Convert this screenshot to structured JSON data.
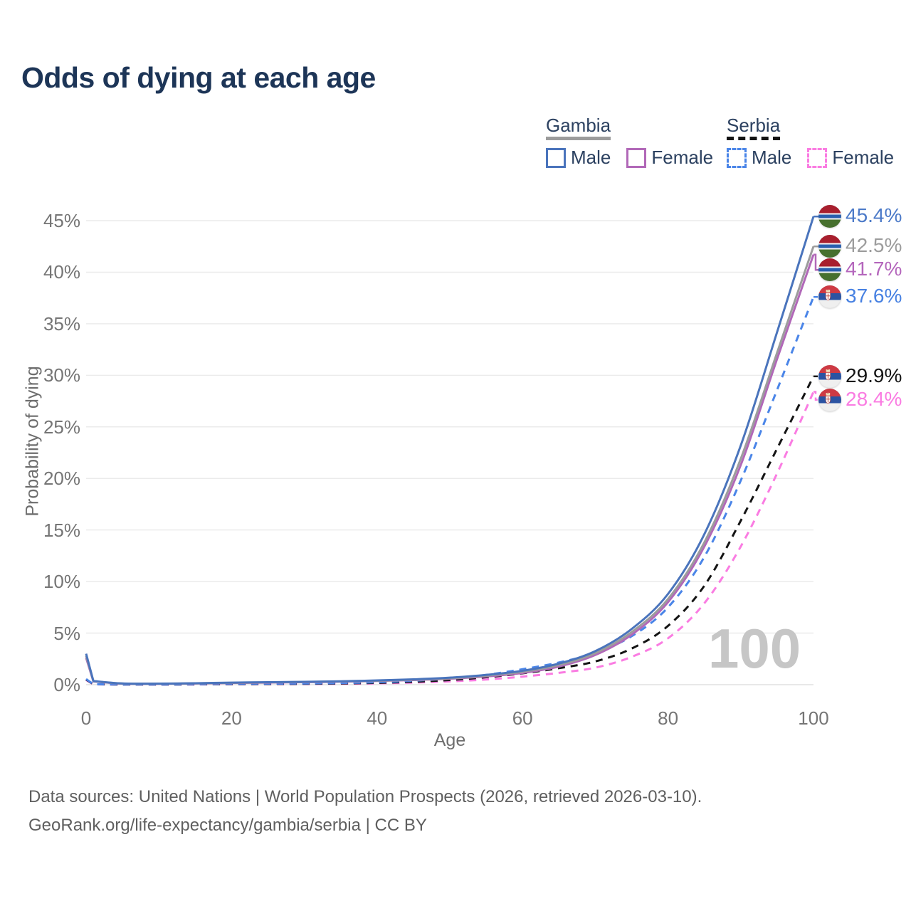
{
  "title": "Odds of dying at each age",
  "legend": {
    "groups": [
      {
        "country": "Gambia",
        "line_style": "solid",
        "underline_color": "#9c9c9c",
        "items": [
          {
            "label": "Male",
            "color": "#4a74bc"
          },
          {
            "label": "Female",
            "color": "#b168b8"
          }
        ]
      },
      {
        "country": "Serbia",
        "line_style": "dashed",
        "underline_color": "#141414",
        "items": [
          {
            "label": "Male",
            "color": "#4a85e8"
          },
          {
            "label": "Female",
            "color": "#fa7ce2"
          }
        ]
      }
    ]
  },
  "axes": {
    "y_title": "Probability of dying",
    "x_title": "Age",
    "y_ticks": [
      {
        "label": "0%",
        "value": 0
      },
      {
        "label": "5%",
        "value": 5
      },
      {
        "label": "10%",
        "value": 10
      },
      {
        "label": "15%",
        "value": 15
      },
      {
        "label": "20%",
        "value": 20
      },
      {
        "label": "25%",
        "value": 25
      },
      {
        "label": "30%",
        "value": 30
      },
      {
        "label": "35%",
        "value": 35
      },
      {
        "label": "40%",
        "value": 40
      },
      {
        "label": "45%",
        "value": 45
      }
    ],
    "x_ticks": [
      {
        "label": "0",
        "value": 0
      },
      {
        "label": "20",
        "value": 20
      },
      {
        "label": "40",
        "value": 40
      },
      {
        "label": "60",
        "value": 60
      },
      {
        "label": "80",
        "value": 80
      },
      {
        "label": "100",
        "value": 100
      }
    ],
    "x_range": [
      0,
      100
    ],
    "y_range_pct": [
      0,
      45
    ],
    "grid": "horizontal"
  },
  "watermark": "100",
  "chart_data": {
    "type": "line",
    "title": "Odds of dying at each age",
    "xlabel": "Age",
    "ylabel": "Probability of dying",
    "xlim": [
      0,
      100
    ],
    "ylim_pct": [
      0,
      45
    ],
    "legend_position": "top-right",
    "series": [
      {
        "id": "gambia-male",
        "country": "Gambia",
        "group": "Male",
        "color": "#4a74bc",
        "dash": false,
        "flag": "gambia",
        "end_label": "45.4%",
        "label_color": "#4c7ac8",
        "points": [
          [
            0,
            3.0
          ],
          [
            1,
            0.35
          ],
          [
            5,
            0.12
          ],
          [
            10,
            0.1
          ],
          [
            15,
            0.14
          ],
          [
            20,
            0.2
          ],
          [
            25,
            0.24
          ],
          [
            30,
            0.28
          ],
          [
            35,
            0.33
          ],
          [
            40,
            0.41
          ],
          [
            45,
            0.52
          ],
          [
            50,
            0.68
          ],
          [
            55,
            0.95
          ],
          [
            60,
            1.35
          ],
          [
            65,
            2.05
          ],
          [
            70,
            3.25
          ],
          [
            75,
            5.4
          ],
          [
            80,
            8.8
          ],
          [
            85,
            14.6
          ],
          [
            90,
            23.2
          ],
          [
            95,
            34.2
          ],
          [
            100,
            45.4
          ]
        ]
      },
      {
        "id": "gambia-total",
        "country": "Gambia",
        "group": "All",
        "color": "#9c9c9c",
        "dash": false,
        "flag": "gambia",
        "end_label": "42.5%",
        "label_color": "#9c9c9c",
        "points": [
          [
            0,
            2.8
          ],
          [
            1,
            0.33
          ],
          [
            5,
            0.11
          ],
          [
            10,
            0.095
          ],
          [
            15,
            0.13
          ],
          [
            20,
            0.18
          ],
          [
            25,
            0.22
          ],
          [
            30,
            0.26
          ],
          [
            35,
            0.31
          ],
          [
            40,
            0.38
          ],
          [
            45,
            0.48
          ],
          [
            50,
            0.62
          ],
          [
            55,
            0.87
          ],
          [
            60,
            1.24
          ],
          [
            65,
            1.9
          ],
          [
            70,
            3.05
          ],
          [
            75,
            5.1
          ],
          [
            80,
            8.3
          ],
          [
            85,
            13.8
          ],
          [
            90,
            21.9
          ],
          [
            95,
            32.2
          ],
          [
            100,
            42.5
          ]
        ]
      },
      {
        "id": "gambia-female",
        "country": "Gambia",
        "group": "Female",
        "color": "#b168b8",
        "dash": false,
        "flag": "gambia",
        "end_label": "41.7%",
        "label_color": "#b466bc",
        "points": [
          [
            0,
            2.6
          ],
          [
            1,
            0.31
          ],
          [
            5,
            0.1
          ],
          [
            10,
            0.09
          ],
          [
            15,
            0.12
          ],
          [
            20,
            0.16
          ],
          [
            25,
            0.2
          ],
          [
            30,
            0.24
          ],
          [
            35,
            0.29
          ],
          [
            40,
            0.36
          ],
          [
            45,
            0.45
          ],
          [
            50,
            0.58
          ],
          [
            55,
            0.8
          ],
          [
            60,
            1.14
          ],
          [
            65,
            1.76
          ],
          [
            70,
            2.88
          ],
          [
            75,
            4.85
          ],
          [
            80,
            8.0
          ],
          [
            85,
            13.4
          ],
          [
            90,
            21.3
          ],
          [
            95,
            31.6
          ],
          [
            100,
            41.7
          ]
        ]
      },
      {
        "id": "serbia-male",
        "country": "Serbia",
        "group": "Male",
        "color": "#4a85e8",
        "dash": true,
        "flag": "serbia",
        "end_label": "37.6%",
        "label_color": "#4781e2",
        "points": [
          [
            0,
            0.55
          ],
          [
            1,
            0.04
          ],
          [
            5,
            0.02
          ],
          [
            10,
            0.015
          ],
          [
            15,
            0.04
          ],
          [
            20,
            0.08
          ],
          [
            25,
            0.1
          ],
          [
            30,
            0.12
          ],
          [
            35,
            0.16
          ],
          [
            40,
            0.24
          ],
          [
            45,
            0.38
          ],
          [
            50,
            0.6
          ],
          [
            55,
            0.95
          ],
          [
            60,
            1.5
          ],
          [
            65,
            2.15
          ],
          [
            70,
            3.1
          ],
          [
            75,
            4.7
          ],
          [
            80,
            7.5
          ],
          [
            85,
            12.4
          ],
          [
            90,
            19.8
          ],
          [
            95,
            28.6
          ],
          [
            100,
            37.6
          ]
        ]
      },
      {
        "id": "serbia-total",
        "country": "Serbia",
        "group": "All",
        "color": "#141414",
        "dash": true,
        "flag": "serbia",
        "end_label": "29.9%",
        "label_color": "#141414",
        "points": [
          [
            0,
            0.5
          ],
          [
            1,
            0.035
          ],
          [
            5,
            0.018
          ],
          [
            10,
            0.013
          ],
          [
            15,
            0.03
          ],
          [
            20,
            0.055
          ],
          [
            25,
            0.07
          ],
          [
            30,
            0.085
          ],
          [
            35,
            0.12
          ],
          [
            40,
            0.18
          ],
          [
            45,
            0.28
          ],
          [
            50,
            0.45
          ],
          [
            55,
            0.72
          ],
          [
            60,
            1.1
          ],
          [
            65,
            1.6
          ],
          [
            70,
            2.25
          ],
          [
            75,
            3.5
          ],
          [
            80,
            5.7
          ],
          [
            85,
            9.6
          ],
          [
            90,
            15.9
          ],
          [
            95,
            22.9
          ],
          [
            100,
            29.9
          ]
        ]
      },
      {
        "id": "serbia-female",
        "country": "Serbia",
        "group": "Female",
        "color": "#fa7ce2",
        "dash": true,
        "flag": "serbia",
        "end_label": "28.4%",
        "label_color": "#fa7ce2",
        "points": [
          [
            0,
            0.45
          ],
          [
            1,
            0.03
          ],
          [
            5,
            0.015
          ],
          [
            10,
            0.011
          ],
          [
            15,
            0.022
          ],
          [
            20,
            0.04
          ],
          [
            25,
            0.05
          ],
          [
            30,
            0.06
          ],
          [
            35,
            0.085
          ],
          [
            40,
            0.13
          ],
          [
            45,
            0.2
          ],
          [
            50,
            0.32
          ],
          [
            55,
            0.5
          ],
          [
            60,
            0.78
          ],
          [
            65,
            1.15
          ],
          [
            70,
            1.65
          ],
          [
            75,
            2.7
          ],
          [
            80,
            4.5
          ],
          [
            85,
            7.9
          ],
          [
            90,
            13.4
          ],
          [
            95,
            20.5
          ],
          [
            100,
            28.4
          ]
        ]
      }
    ]
  },
  "footer": {
    "line1": "Data sources: United Nations | World Population Prospects (2026, retrieved 2026-03-10).",
    "line2": "GeoRank.org/life-expectancy/gambia/serbia | CC BY"
  }
}
